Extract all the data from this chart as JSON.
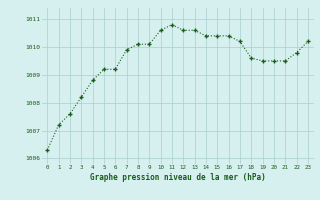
{
  "x": [
    0,
    1,
    2,
    3,
    4,
    5,
    6,
    7,
    8,
    9,
    10,
    11,
    12,
    13,
    14,
    15,
    16,
    17,
    18,
    19,
    20,
    21,
    22,
    23
  ],
  "y": [
    1006.3,
    1007.2,
    1007.6,
    1008.2,
    1008.8,
    1009.2,
    1009.2,
    1009.9,
    1010.1,
    1010.1,
    1010.6,
    1010.8,
    1010.6,
    1010.6,
    1010.4,
    1010.4,
    1010.4,
    1010.2,
    1009.6,
    1009.5,
    1009.5,
    1009.5,
    1009.8,
    1010.2
  ],
  "line_color": "#1a5c1a",
  "marker_color": "#1a5c1a",
  "bg_color": "#d6f0f0",
  "grid_color": "#aacece",
  "xlabel": "Graphe pression niveau de la mer (hPa)",
  "xlabel_color": "#1a5c1a",
  "tick_color": "#1a5c1a",
  "ylim": [
    1005.8,
    1011.4
  ],
  "yticks": [
    1006,
    1007,
    1008,
    1009,
    1010,
    1011
  ],
  "xlim": [
    -0.5,
    23.5
  ],
  "xticks": [
    0,
    1,
    2,
    3,
    4,
    5,
    6,
    7,
    8,
    9,
    10,
    11,
    12,
    13,
    14,
    15,
    16,
    17,
    18,
    19,
    20,
    21,
    22,
    23
  ]
}
